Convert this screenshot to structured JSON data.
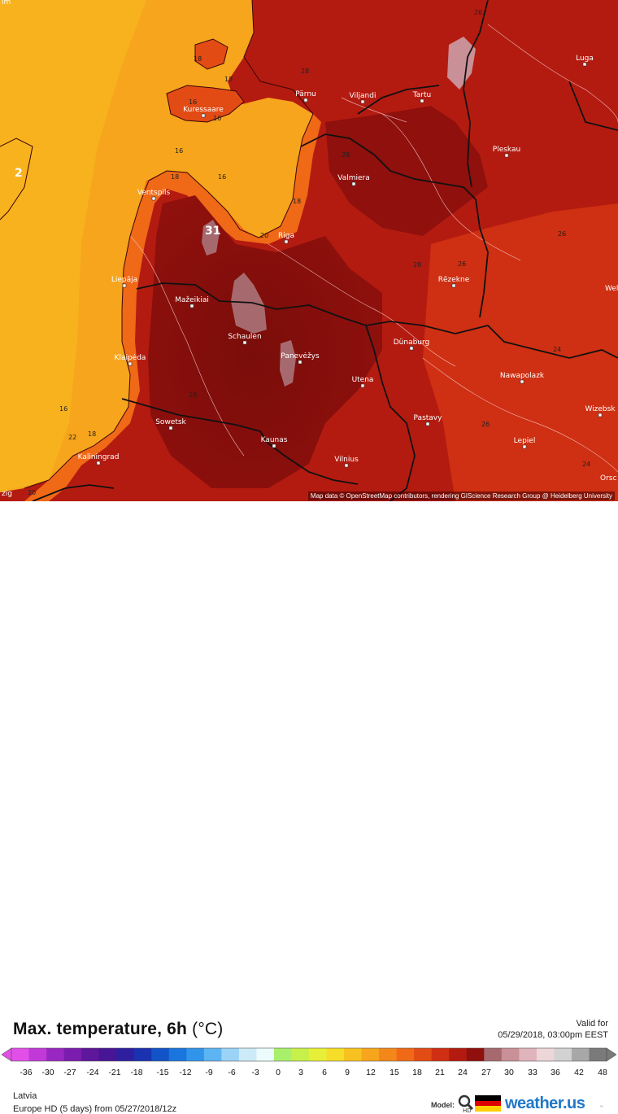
{
  "map": {
    "cities": [
      {
        "name": "Luga",
        "pos": [
          719,
          74
        ]
      },
      {
        "name": "Pärnu",
        "pos": [
          376,
          118
        ]
      },
      {
        "name": "Viljandi",
        "pos": [
          446,
          120
        ]
      },
      {
        "name": "Tartu",
        "pos": [
          519,
          119
        ]
      },
      {
        "name": "Kuressaare",
        "pos": [
          250,
          137
        ]
      },
      {
        "name": "Pleskau",
        "pos": [
          623,
          186
        ]
      },
      {
        "name": "Valmiera",
        "pos": [
          435,
          221
        ]
      },
      {
        "name": "Ventspils",
        "pos": [
          189,
          239
        ]
      },
      {
        "name": "Riga",
        "pos": [
          352,
          292
        ]
      },
      {
        "name": "Liepāja",
        "pos": [
          153,
          346
        ]
      },
      {
        "name": "Rēzekne",
        "pos": [
          558,
          346
        ]
      },
      {
        "name": "Mažeikiai",
        "pos": [
          236,
          371
        ]
      },
      {
        "name": "Schaulen",
        "pos": [
          301,
          416
        ]
      },
      {
        "name": "Dünaburg",
        "pos": [
          506,
          423
        ]
      },
      {
        "name": "Panevėžys",
        "pos": [
          369,
          440
        ]
      },
      {
        "name": "Klaipėda",
        "pos": [
          160,
          442
        ]
      },
      {
        "name": "Utena",
        "pos": [
          446,
          469
        ]
      },
      {
        "name": "Nawapolazk",
        "pos": [
          642,
          464
        ]
      },
      {
        "name": "Wizebsk",
        "pos": [
          738,
          505
        ]
      },
      {
        "name": "Sowetsk",
        "pos": [
          210,
          521
        ]
      },
      {
        "name": "Pastavy",
        "pos": [
          526,
          516
        ]
      },
      {
        "name": "Kaunas",
        "pos": [
          337,
          543
        ]
      },
      {
        "name": "Lepiel",
        "pos": [
          645,
          544
        ]
      },
      {
        "name": "Kaliningrad",
        "pos": [
          121,
          564
        ]
      },
      {
        "name": "Vilnius",
        "pos": [
          426,
          567
        ]
      }
    ],
    "edge_labels": [
      "Wel",
      "Orsc",
      "lm",
      "zig"
    ],
    "iso_labels": [
      "16",
      "18",
      "20",
      "22",
      "24",
      "26",
      "28",
      "31",
      "2"
    ],
    "attribution": "Map data © OpenStreetMap contributors, rendering GIScience Research Group @ Heidelberg University"
  },
  "header": {
    "title": "Max. temperature, 6h",
    "unit": "(°C)",
    "valid_label": "Valid for",
    "valid_date": "05/29/2018, 03:00pm EEST"
  },
  "scale": {
    "ticks": [
      "-36",
      "-30",
      "-27",
      "-24",
      "-21",
      "-18",
      "-15",
      "-12",
      "-9",
      "-6",
      "-3",
      "0",
      "3",
      "6",
      "9",
      "12",
      "15",
      "18",
      "21",
      "24",
      "27",
      "30",
      "33",
      "36",
      "42",
      "48"
    ],
    "colors": [
      "#e24fe8",
      "#c13ad7",
      "#9928c2",
      "#7a1dae",
      "#5e169a",
      "#481597",
      "#2f1f9f",
      "#1a32b0",
      "#1253c8",
      "#1a75de",
      "#3094ea",
      "#5cb4f2",
      "#9bd3f6",
      "#cdeaf8",
      "#ecfbfb",
      "#a9f06a",
      "#c8f04a",
      "#e7ef39",
      "#f5dd2a",
      "#f7c220",
      "#f6a51c",
      "#f3871a",
      "#ef6917",
      "#e34b15",
      "#cf2f12",
      "#b41b10",
      "#8f100d",
      "#a66a6e",
      "#c99097",
      "#dfb4ba",
      "#ecd6d8",
      "#d2d2d2",
      "#a8a8a8",
      "#7a7a7a"
    ]
  },
  "footer": {
    "region": "Latvia",
    "model_run": "Europe HD (5 days) from 05/27/2018/12z",
    "model_label": "Model:",
    "brand": "weather.us",
    "brand_sup": "™"
  }
}
